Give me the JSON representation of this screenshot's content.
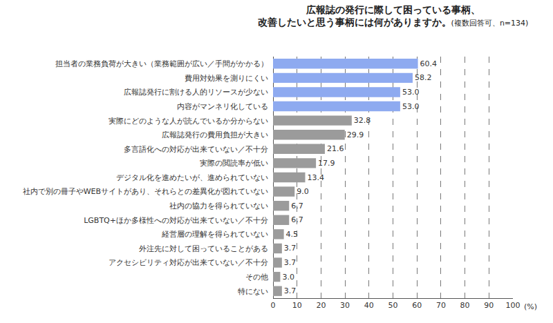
{
  "chart_data": {
    "type": "bar",
    "orientation": "horizontal",
    "title": "広報誌の発行に際して困っている事柄、\n改善したいと思う事柄には何がありますか。",
    "subtitle": "(複数回答可、n=134)",
    "x_label": "(%)",
    "categories": [
      "担当者の業務負荷が大きい（業務範囲が広い／手間がかかる）",
      "費用対効果を測りにくい",
      "広報誌発行に割ける人的リソースが少ない",
      "内容がマンネリ化している",
      "実際にどのような人が読んでいるか分からない",
      "広報誌発行の費用負担が大きい",
      "多言語化への対応が出来ていない／不十分",
      "実際の閲読率が低い",
      "デジタル化を進めたいが、進められていない",
      "社内で別の冊子やWEBサイトがあり、それらとの差異化が図れていない",
      "社内の協力を得られていない",
      "LGBTQ+ほか多様性への対応が出来ていない／不十分",
      "経営層の理解を得られていない",
      "外注先に対して困っていることがある",
      "アクセシビリティ対応が出来ていない／不十分",
      "その他",
      "特にない"
    ],
    "values": [
      60.4,
      58.2,
      53.0,
      53.0,
      32.8,
      29.9,
      21.6,
      17.9,
      13.4,
      9.0,
      6.7,
      6.7,
      4.5,
      3.7,
      3.7,
      3.0,
      3.7
    ],
    "value_labels": [
      "60.4",
      "58.2",
      "53.0",
      "53.0",
      "32.8",
      "29.9",
      "21.6",
      "17.9",
      "13.4",
      "9.0",
      "6.7",
      "6.7",
      "4.5",
      "3.7",
      "3.7",
      "3.0",
      "3.7"
    ],
    "colors": [
      "#8eaaf0",
      "#8eaaf0",
      "#8eaaf0",
      "#8eaaf0",
      "#9b9b9b",
      "#9b9b9b",
      "#9b9b9b",
      "#9b9b9b",
      "#9b9b9b",
      "#9b9b9b",
      "#9b9b9b",
      "#9b9b9b",
      "#9b9b9b",
      "#9b9b9b",
      "#9b9b9b",
      "#9b9b9b",
      "#9b9b9b"
    ],
    "xlim": [
      0,
      100
    ],
    "xticks": [
      0,
      10,
      20,
      30,
      40,
      50,
      60,
      70,
      80,
      90,
      100
    ],
    "grid": true,
    "data_labels": true
  }
}
